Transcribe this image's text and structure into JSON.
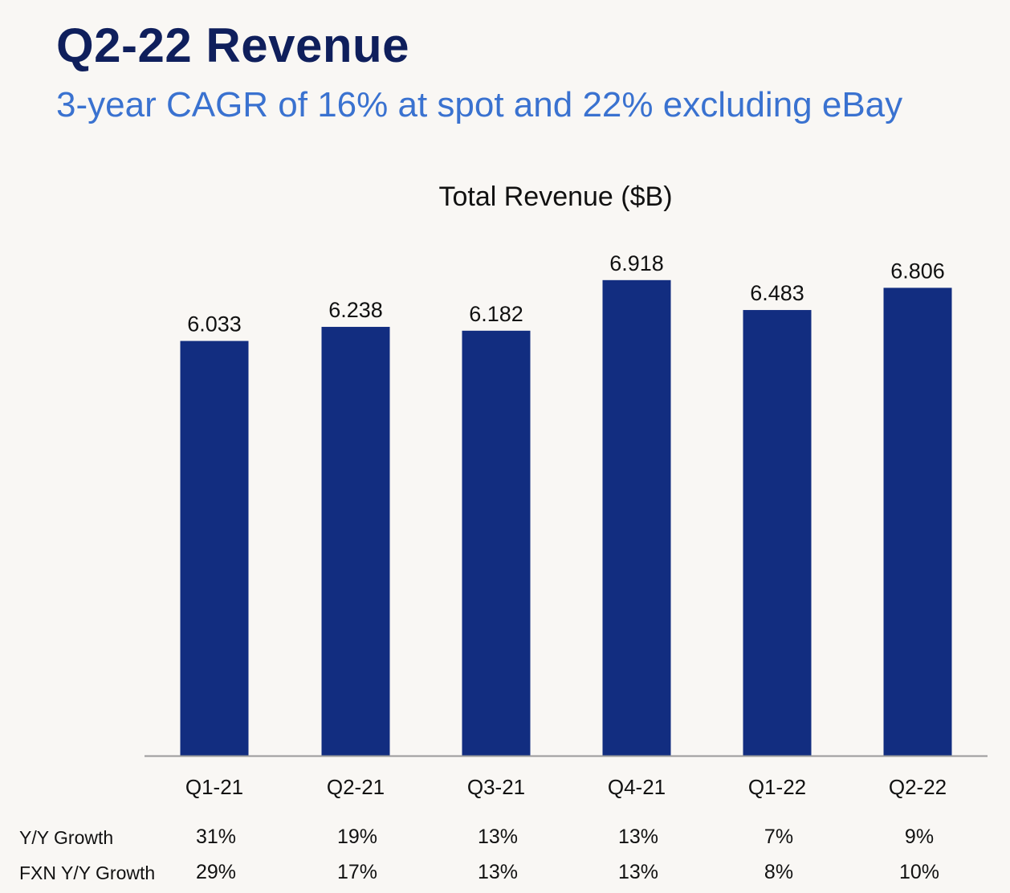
{
  "header": {
    "title": "Q2-22 Revenue",
    "subtitle": "3-year CAGR of 16% at spot and 22% excluding eBay"
  },
  "colors": {
    "bar": "#122d80",
    "title": "#0f1f5c",
    "subtitle": "#3a72d0",
    "axis": "#9a9a9a"
  },
  "chart_data": {
    "type": "bar",
    "title": "Total Revenue ($B)",
    "xlabel": "",
    "ylabel": "",
    "ylim": [
      0,
      7.2
    ],
    "grid": false,
    "categories": [
      "Q1-21",
      "Q2-21",
      "Q3-21",
      "Q4-21",
      "Q1-22",
      "Q2-22"
    ],
    "values": [
      6.033,
      6.238,
      6.182,
      6.918,
      6.483,
      6.806
    ],
    "data_labels": [
      "6.033",
      "6.238",
      "6.182",
      "6.918",
      "6.483",
      "6.806"
    ],
    "table": [
      {
        "label": "Y/Y Growth",
        "values": [
          "31%",
          "19%",
          "13%",
          "13%",
          "7%",
          "9%"
        ]
      },
      {
        "label": "FXN Y/Y Growth",
        "values": [
          "29%",
          "17%",
          "13%",
          "13%",
          "8%",
          "10%"
        ]
      }
    ]
  }
}
